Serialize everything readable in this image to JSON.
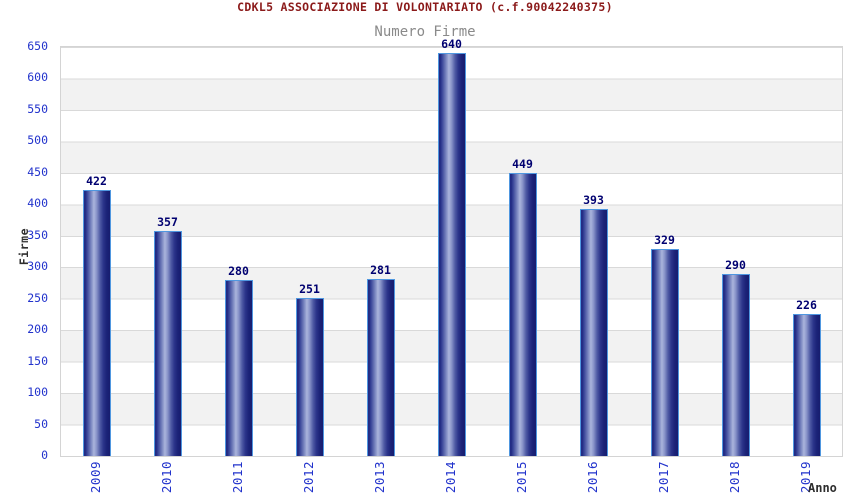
{
  "chart_data": {
    "type": "bar",
    "title": "CDKL5 ASSOCIAZIONE DI VOLONTARIATO (c.f.90042240375)",
    "subtitle": "Numero Firme",
    "xlabel": "Anno",
    "ylabel": "Firme",
    "categories": [
      "2009",
      "2010",
      "2011",
      "2012",
      "2013",
      "2014",
      "2015",
      "2016",
      "2017",
      "2018",
      "2019"
    ],
    "values": [
      422,
      357,
      280,
      251,
      281,
      640,
      449,
      393,
      329,
      290,
      226
    ],
    "ylim": [
      0,
      650
    ],
    "ytick_step": 50,
    "legend": "none",
    "grid": "horizontal alternating bands with gridlines every 50",
    "colors": {
      "title": "#8b1a1a",
      "subtitle": "#8a8a8a",
      "axis_tick_label": "#2233cc",
      "axis_name_label": "#2e2e2e",
      "bar_value_label": "#000070",
      "bar_border": "#4f97e0",
      "bar_dark": "#1b2277",
      "bar_highlight": "#aab4dc",
      "band_gray": "#f2f2f2",
      "gridline": "#d9d9d9",
      "plot_border": "#d4d4d4",
      "background": "#ffffff"
    }
  }
}
